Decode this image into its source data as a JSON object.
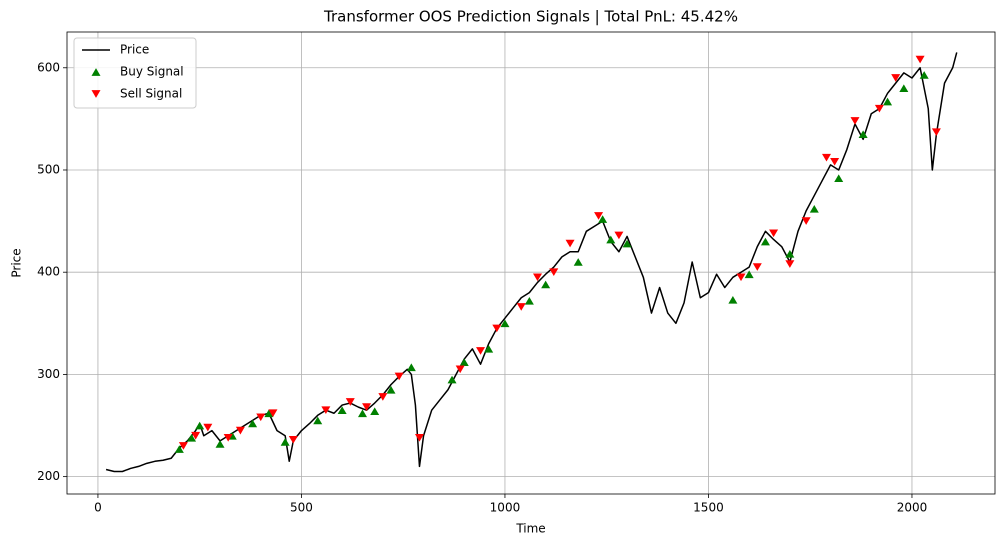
{
  "chart_data": {
    "type": "line",
    "title": "Transformer OOS Prediction Signals | Total PnL: 45.42%",
    "xlabel": "Time",
    "ylabel": "Price",
    "xlim": [
      -76,
      2204
    ],
    "ylim": [
      183,
      635
    ],
    "xticks": [
      0,
      500,
      1000,
      1500,
      2000
    ],
    "yticks": [
      200,
      300,
      400,
      500,
      600
    ],
    "grid": true,
    "legend": "upper left",
    "series": [
      {
        "name": "Price",
        "type": "line",
        "color": "#000000",
        "x": [
          20,
          40,
          60,
          80,
          100,
          120,
          140,
          160,
          180,
          200,
          220,
          240,
          250,
          260,
          280,
          300,
          320,
          340,
          360,
          380,
          400,
          420,
          440,
          460,
          470,
          480,
          500,
          520,
          540,
          560,
          580,
          600,
          620,
          640,
          660,
          680,
          700,
          720,
          740,
          760,
          770,
          780,
          790,
          800,
          820,
          840,
          860,
          880,
          900,
          920,
          940,
          960,
          980,
          1000,
          1020,
          1040,
          1060,
          1080,
          1100,
          1120,
          1140,
          1160,
          1180,
          1200,
          1220,
          1240,
          1260,
          1280,
          1300,
          1320,
          1340,
          1360,
          1380,
          1400,
          1420,
          1440,
          1460,
          1480,
          1500,
          1520,
          1540,
          1560,
          1580,
          1600,
          1620,
          1640,
          1660,
          1680,
          1700,
          1720,
          1740,
          1760,
          1780,
          1800,
          1820,
          1840,
          1860,
          1880,
          1900,
          1920,
          1940,
          1960,
          1980,
          2000,
          2020,
          2040,
          2050,
          2060,
          2080,
          2100,
          2110
        ],
        "values": [
          207,
          205,
          205,
          208,
          210,
          213,
          215,
          216,
          218,
          228,
          235,
          245,
          252,
          240,
          245,
          235,
          240,
          245,
          250,
          255,
          260,
          262,
          245,
          240,
          215,
          235,
          245,
          252,
          260,
          265,
          262,
          270,
          272,
          268,
          265,
          272,
          280,
          290,
          298,
          305,
          300,
          270,
          210,
          240,
          265,
          275,
          285,
          300,
          315,
          325,
          310,
          330,
          345,
          355,
          365,
          375,
          380,
          390,
          398,
          405,
          415,
          420,
          420,
          440,
          445,
          450,
          430,
          420,
          435,
          415,
          395,
          360,
          385,
          360,
          350,
          370,
          410,
          375,
          380,
          398,
          385,
          395,
          400,
          405,
          425,
          440,
          432,
          425,
          410,
          440,
          460,
          475,
          490,
          505,
          500,
          520,
          545,
          530,
          555,
          560,
          575,
          585,
          595,
          590,
          600,
          560,
          500,
          535,
          585,
          600,
          615
        ]
      },
      {
        "name": "Buy Signal",
        "type": "scatter",
        "marker": "^",
        "color": "#008000",
        "x": [
          200,
          230,
          250,
          300,
          330,
          380,
          420,
          460,
          540,
          600,
          650,
          680,
          720,
          770,
          870,
          900,
          960,
          1000,
          1060,
          1100,
          1180,
          1240,
          1260,
          1300,
          1560,
          1600,
          1640,
          1700,
          1760,
          1820,
          1880,
          1940,
          1980,
          2030
        ],
        "values": [
          227,
          238,
          250,
          232,
          240,
          252,
          262,
          234,
          255,
          265,
          262,
          264,
          285,
          307,
          295,
          312,
          325,
          350,
          372,
          388,
          410,
          452,
          432,
          428,
          373,
          398,
          430,
          418,
          462,
          492,
          535,
          567,
          580,
          593
        ]
      },
      {
        "name": "Sell Signal",
        "type": "scatter",
        "marker": "v",
        "color": "#ff0000",
        "x": [
          210,
          240,
          270,
          320,
          350,
          400,
          430,
          480,
          560,
          620,
          660,
          700,
          740,
          790,
          890,
          940,
          980,
          1040,
          1080,
          1120,
          1160,
          1230,
          1280,
          1580,
          1620,
          1660,
          1700,
          1740,
          1790,
          1810,
          1860,
          1920,
          1960,
          2020,
          2060
        ],
        "values": [
          230,
          240,
          248,
          238,
          245,
          258,
          262,
          236,
          265,
          273,
          268,
          278,
          298,
          238,
          305,
          323,
          345,
          366,
          395,
          400,
          428,
          455,
          436,
          395,
          405,
          438,
          408,
          450,
          512,
          508,
          548,
          560,
          590,
          608,
          537
        ]
      }
    ]
  }
}
